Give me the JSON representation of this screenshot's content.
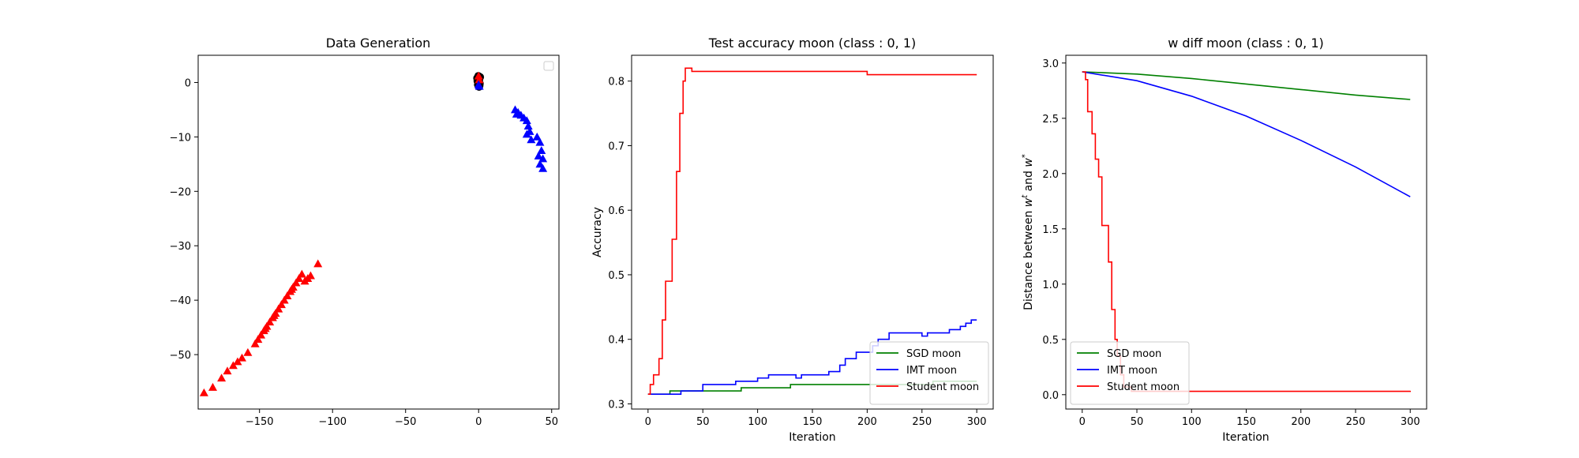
{
  "chart_data": [
    {
      "type": "scatter",
      "title": "Data Generation",
      "xlabel": "",
      "ylabel": "",
      "xlim": [
        -192,
        55
      ],
      "ylim": [
        -60,
        5
      ],
      "xticks": [
        -150,
        -100,
        -50,
        0,
        50
      ],
      "yticks": [
        0,
        -10,
        -20,
        -30,
        -40,
        -50
      ],
      "legend": {
        "position": "top-right",
        "entries": []
      },
      "grid": false,
      "series": [
        {
          "marker": "triangle",
          "color": "#ff0000",
          "points": [
            [
              -188,
              -57
            ],
            [
              -182,
              -56
            ],
            [
              -176,
              -54.3
            ],
            [
              -172,
              -53
            ],
            [
              -168,
              -52
            ],
            [
              -165,
              -51.3
            ],
            [
              -162,
              -50.6
            ],
            [
              -158,
              -49.6
            ],
            [
              -153,
              -48
            ],
            [
              -151,
              -47.2
            ],
            [
              -149,
              -46.4
            ],
            [
              -147,
              -45.6
            ],
            [
              -145,
              -44.8
            ],
            [
              -143,
              -44
            ],
            [
              -141,
              -43.2
            ],
            [
              -139,
              -42.4
            ],
            [
              -137,
              -41.6
            ],
            [
              -135,
              -40.8
            ],
            [
              -133,
              -40
            ],
            [
              -131,
              -39.2
            ],
            [
              -129,
              -38.4
            ],
            [
              -127,
              -37.6
            ],
            [
              -125,
              -36.8
            ],
            [
              -123,
              -36
            ],
            [
              -121,
              -35.2
            ],
            [
              -119,
              -36.5
            ],
            [
              -117,
              -36
            ],
            [
              -115,
              -35.5
            ],
            [
              -110,
              -33.3
            ],
            [
              -140,
              -42.8
            ],
            [
              -128,
              -38
            ],
            [
              -146,
              -45.2
            ]
          ]
        },
        {
          "marker": "triangle",
          "color": "#0000ff",
          "points": [
            [
              25,
              -5
            ],
            [
              27,
              -5.5
            ],
            [
              29,
              -6
            ],
            [
              31,
              -6.5
            ],
            [
              26,
              -5.8
            ],
            [
              33,
              -7
            ],
            [
              34,
              -8
            ],
            [
              35,
              -9
            ],
            [
              33,
              -9.5
            ],
            [
              36,
              -10.5
            ],
            [
              40,
              -10
            ],
            [
              42,
              -11
            ],
            [
              43,
              -12.5
            ],
            [
              41,
              -13.5
            ],
            [
              44,
              -14
            ],
            [
              42,
              -15
            ],
            [
              44,
              -15.8
            ]
          ]
        },
        {
          "marker": "circle",
          "color": "#000000",
          "points": [
            [
              0,
              0
            ],
            [
              0.5,
              0.6
            ],
            [
              -0.5,
              -0.4
            ],
            [
              1,
              1
            ],
            [
              -1,
              0.8
            ],
            [
              0.3,
              -0.8
            ],
            [
              -0.2,
              1.2
            ],
            [
              0.8,
              -0.2
            ],
            [
              -0.8,
              0.3
            ],
            [
              0.1,
              0.3
            ],
            [
              0.6,
              -0.6
            ]
          ]
        },
        {
          "marker": "triangle",
          "color": "#ff0000",
          "points": [
            [
              0,
              1.2
            ],
            [
              0.4,
              0.5
            ]
          ]
        },
        {
          "marker": "triangle",
          "color": "#0000ff",
          "points": [
            [
              0,
              -0.4
            ],
            [
              0.5,
              -0.7
            ]
          ]
        }
      ]
    },
    {
      "type": "line",
      "title": "Test accuracy moon (class : 0, 1)",
      "xlabel": "Iteration",
      "ylabel": "Accuracy",
      "xlim": [
        -15,
        315
      ],
      "ylim": [
        0.292,
        0.84
      ],
      "xticks": [
        0,
        50,
        100,
        150,
        200,
        250,
        300
      ],
      "yticks": [
        0.3,
        0.4,
        0.5,
        0.6,
        0.7,
        0.8
      ],
      "legend": {
        "position": "lower-right"
      },
      "grid": false,
      "series": [
        {
          "name": "SGD moon",
          "color": "#008000",
          "steps": [
            [
              0,
              0.315
            ],
            [
              20,
              0.32
            ],
            [
              85,
              0.325
            ],
            [
              130,
              0.33
            ],
            [
              260,
              0.335
            ],
            [
              300,
              0.335
            ]
          ]
        },
        {
          "name": "IMT moon",
          "color": "#0000ff",
          "steps": [
            [
              0,
              0.315
            ],
            [
              30,
              0.32
            ],
            [
              50,
              0.33
            ],
            [
              80,
              0.335
            ],
            [
              100,
              0.34
            ],
            [
              110,
              0.345
            ],
            [
              135,
              0.34
            ],
            [
              140,
              0.345
            ],
            [
              165,
              0.35
            ],
            [
              175,
              0.36
            ],
            [
              180,
              0.37
            ],
            [
              190,
              0.38
            ],
            [
              205,
              0.39
            ],
            [
              210,
              0.4
            ],
            [
              220,
              0.41
            ],
            [
              250,
              0.405
            ],
            [
              255,
              0.41
            ],
            [
              275,
              0.415
            ],
            [
              285,
              0.42
            ],
            [
              290,
              0.425
            ],
            [
              295,
              0.43
            ],
            [
              300,
              0.43
            ]
          ]
        },
        {
          "name": "Student moon",
          "color": "#ff0000",
          "steps": [
            [
              0,
              0.315
            ],
            [
              2,
              0.33
            ],
            [
              5,
              0.345
            ],
            [
              10,
              0.37
            ],
            [
              13,
              0.43
            ],
            [
              16,
              0.49
            ],
            [
              22,
              0.555
            ],
            [
              26,
              0.66
            ],
            [
              29,
              0.75
            ],
            [
              32,
              0.8
            ],
            [
              34,
              0.82
            ],
            [
              40,
              0.815
            ],
            [
              200,
              0.81
            ],
            [
              300,
              0.81
            ]
          ]
        }
      ]
    },
    {
      "type": "line",
      "title": "w diff moon (class : 0, 1)",
      "xlabel": "Iteration",
      "ylabel": "Distance between w^t and w^*",
      "xlim": [
        -15,
        315
      ],
      "ylim": [
        -0.13,
        3.07
      ],
      "xticks": [
        0,
        50,
        100,
        150,
        200,
        250,
        300
      ],
      "yticks": [
        0.0,
        0.5,
        1.0,
        1.5,
        2.0,
        2.5,
        3.0
      ],
      "legend": {
        "position": "lower-left"
      },
      "grid": false,
      "series": [
        {
          "name": "SGD moon",
          "color": "#008000",
          "points": [
            [
              0,
              2.92
            ],
            [
              50,
              2.9
            ],
            [
              100,
              2.86
            ],
            [
              150,
              2.81
            ],
            [
              200,
              2.76
            ],
            [
              250,
              2.71
            ],
            [
              300,
              2.67
            ]
          ]
        },
        {
          "name": "IMT moon",
          "color": "#0000ff",
          "points": [
            [
              0,
              2.92
            ],
            [
              50,
              2.84
            ],
            [
              100,
              2.7
            ],
            [
              150,
              2.52
            ],
            [
              200,
              2.3
            ],
            [
              250,
              2.06
            ],
            [
              300,
              1.79
            ]
          ]
        },
        {
          "name": "Student moon",
          "color": "#ff0000",
          "steps": [
            [
              0,
              2.92
            ],
            [
              3,
              2.85
            ],
            [
              5,
              2.56
            ],
            [
              9,
              2.36
            ],
            [
              12,
              2.13
            ],
            [
              15,
              1.97
            ],
            [
              18,
              1.53
            ],
            [
              24,
              1.2
            ],
            [
              27,
              0.77
            ],
            [
              30,
              0.5
            ],
            [
              32,
              0.35
            ],
            [
              35,
              0.18
            ],
            [
              38,
              0.07
            ],
            [
              45,
              0.03
            ],
            [
              300,
              0.035
            ]
          ]
        }
      ]
    }
  ]
}
